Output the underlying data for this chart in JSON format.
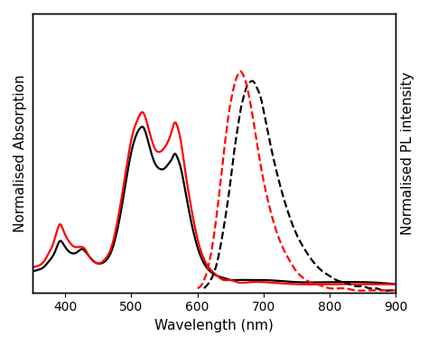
{
  "title": "",
  "xlabel": "Wavelength (nm)",
  "ylabel_left": "Normalised Absorption",
  "ylabel_right": "Normalised PL intensity",
  "xlim": [
    350,
    900
  ],
  "ylim": [
    0,
    1.35
  ],
  "background_color": "#ffffff",
  "black_solid_x": [
    350,
    360,
    370,
    375,
    380,
    385,
    390,
    393,
    396,
    400,
    405,
    410,
    415,
    420,
    425,
    430,
    435,
    440,
    450,
    460,
    470,
    480,
    490,
    500,
    505,
    510,
    515,
    518,
    522,
    528,
    535,
    542,
    550,
    558,
    562,
    565,
    570,
    575,
    580,
    590,
    600,
    610,
    620,
    630,
    640,
    650,
    660,
    680,
    700,
    750,
    800,
    850,
    900
  ],
  "black_solid_y": [
    0.1,
    0.11,
    0.13,
    0.15,
    0.17,
    0.2,
    0.24,
    0.25,
    0.24,
    0.22,
    0.2,
    0.19,
    0.19,
    0.2,
    0.21,
    0.2,
    0.18,
    0.16,
    0.14,
    0.15,
    0.2,
    0.32,
    0.5,
    0.68,
    0.74,
    0.78,
    0.8,
    0.8,
    0.77,
    0.7,
    0.63,
    0.6,
    0.6,
    0.63,
    0.65,
    0.67,
    0.65,
    0.6,
    0.52,
    0.35,
    0.22,
    0.14,
    0.1,
    0.08,
    0.07,
    0.06,
    0.06,
    0.06,
    0.06,
    0.05,
    0.05,
    0.05,
    0.04
  ],
  "red_solid_x": [
    350,
    360,
    370,
    375,
    380,
    385,
    390,
    393,
    396,
    400,
    405,
    410,
    415,
    420,
    425,
    430,
    435,
    440,
    450,
    460,
    470,
    480,
    490,
    500,
    505,
    510,
    515,
    518,
    522,
    528,
    535,
    542,
    550,
    558,
    562,
    565,
    570,
    575,
    580,
    590,
    600,
    610,
    620,
    630,
    640,
    650,
    660,
    680,
    700,
    750,
    800,
    850,
    900
  ],
  "red_solid_y": [
    0.12,
    0.13,
    0.16,
    0.19,
    0.22,
    0.27,
    0.32,
    0.33,
    0.31,
    0.28,
    0.25,
    0.23,
    0.22,
    0.22,
    0.22,
    0.21,
    0.18,
    0.16,
    0.14,
    0.16,
    0.22,
    0.36,
    0.55,
    0.74,
    0.8,
    0.84,
    0.87,
    0.87,
    0.84,
    0.77,
    0.7,
    0.68,
    0.7,
    0.75,
    0.79,
    0.82,
    0.8,
    0.73,
    0.62,
    0.42,
    0.26,
    0.16,
    0.11,
    0.08,
    0.06,
    0.06,
    0.05,
    0.05,
    0.05,
    0.04,
    0.04,
    0.04,
    0.04
  ],
  "black_dashed_x": [
    610,
    620,
    630,
    640,
    650,
    655,
    660,
    665,
    670,
    675,
    680,
    685,
    690,
    695,
    700,
    710,
    720,
    730,
    740,
    750,
    760,
    770,
    780,
    790,
    800,
    810,
    820,
    830,
    840,
    850,
    860,
    870,
    880,
    890,
    900
  ],
  "black_dashed_y": [
    0.02,
    0.06,
    0.15,
    0.32,
    0.54,
    0.67,
    0.78,
    0.88,
    0.95,
    1.0,
    1.02,
    1.02,
    0.99,
    0.95,
    0.88,
    0.72,
    0.58,
    0.46,
    0.36,
    0.28,
    0.22,
    0.17,
    0.13,
    0.1,
    0.08,
    0.06,
    0.05,
    0.04,
    0.03,
    0.03,
    0.02,
    0.02,
    0.01,
    0.01,
    0.01
  ],
  "red_dashed_x": [
    600,
    610,
    620,
    630,
    640,
    648,
    654,
    658,
    662,
    665,
    668,
    672,
    676,
    682,
    690,
    700,
    710,
    720,
    730,
    740,
    750,
    760,
    770,
    780,
    790,
    800,
    820,
    840,
    860,
    880,
    900
  ],
  "red_dashed_y": [
    0.02,
    0.06,
    0.18,
    0.4,
    0.68,
    0.88,
    0.98,
    1.03,
    1.06,
    1.07,
    1.06,
    1.03,
    0.98,
    0.88,
    0.72,
    0.54,
    0.4,
    0.29,
    0.21,
    0.15,
    0.1,
    0.07,
    0.05,
    0.04,
    0.03,
    0.02,
    0.02,
    0.01,
    0.01,
    0.01,
    0.01
  ],
  "line_width": 1.6,
  "tick_fontsize": 10,
  "label_fontsize": 11
}
